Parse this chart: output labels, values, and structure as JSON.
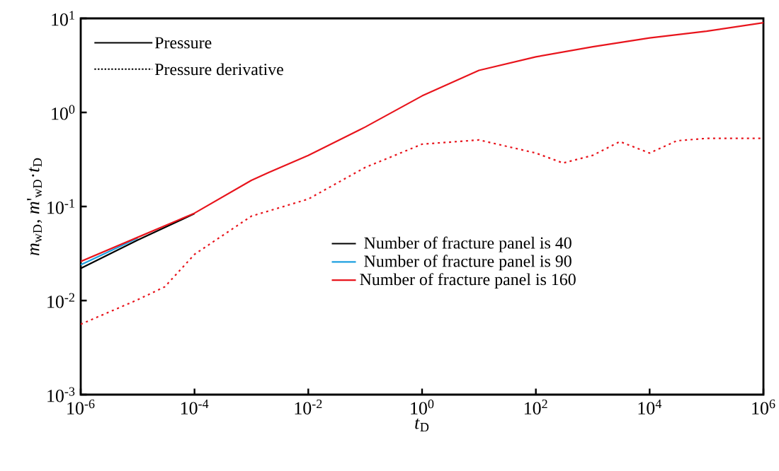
{
  "chart_data": {
    "type": "line",
    "log": "xy",
    "marker": "none",
    "grid": false,
    "legend": "center",
    "xlabel": "*t*$_{D}$",
    "ylabel": "*m*$_{wD}$, *m*'$_{wD}$·*t*$_{D}$",
    "xlim": [
      1e-06,
      1000000.0
    ],
    "ylim": [
      0.001,
      10
    ],
    "xticks": [
      {
        "value": 1e-06,
        "label": "10$^{-6}$"
      },
      {
        "value": 0.0001,
        "label": "10$^{-4}$"
      },
      {
        "value": 0.01,
        "label": "10$^{-2}$"
      },
      {
        "value": 1,
        "label": "10$^{0}$"
      },
      {
        "value": 100,
        "label": "10$^{2}$"
      },
      {
        "value": 10000.0,
        "label": "10$^{4}$"
      },
      {
        "value": 1000000.0,
        "label": "10$^{6}$"
      }
    ],
    "yticks": [
      {
        "value": 0.001,
        "label": "10$^{-3}$"
      },
      {
        "value": 0.01,
        "label": "10$^{-2}$"
      },
      {
        "value": 0.1,
        "label": "10$^{-1}$"
      },
      {
        "value": 1,
        "label": "10$^{0}$"
      },
      {
        "value": 10,
        "label": "10$^{1}$"
      }
    ],
    "annotations": [
      "Pressure",
      "Pressure derivative"
    ],
    "series": [
      {
        "name": "Number of fracture panel is 40",
        "color": "#000000",
        "line_style": "solid",
        "x": [
          1e-06,
          1e-05,
          0.0001
        ],
        "values": [
          0.022,
          0.044,
          0.084
        ]
      },
      {
        "name": "Number of fracture panel is  90",
        "color": "#1ea0e0",
        "line_style": "solid",
        "x": [
          1e-06,
          1e-05
        ],
        "values": [
          0.024,
          0.046
        ]
      },
      {
        "name": "Number of fracture panel is  160",
        "color": "#e8141c",
        "line_style": "solid",
        "x": [
          1e-06,
          1e-05,
          0.0001,
          0.001,
          0.002,
          0.01,
          0.1,
          1,
          10,
          100,
          1000,
          10000.0,
          100000.0,
          1000000.0
        ],
        "values": [
          0.026,
          0.047,
          0.085,
          0.19,
          0.23,
          0.35,
          0.7,
          1.5,
          2.8,
          3.9,
          5.0,
          6.2,
          7.3,
          9.0
        ]
      },
      {
        "color": "#e8141c",
        "line_style": "dotted",
        "x": [
          1e-06,
          1e-05,
          3e-05,
          0.0001,
          0.001,
          0.01,
          0.1,
          1,
          10,
          100,
          300,
          1000,
          3000,
          10000.0,
          30000.0,
          100000.0,
          1000000.0
        ],
        "values": [
          0.0056,
          0.0102,
          0.014,
          0.031,
          0.079,
          0.12,
          0.26,
          0.46,
          0.51,
          0.37,
          0.29,
          0.35,
          0.49,
          0.37,
          0.5,
          0.53,
          0.53
        ]
      }
    ]
  }
}
